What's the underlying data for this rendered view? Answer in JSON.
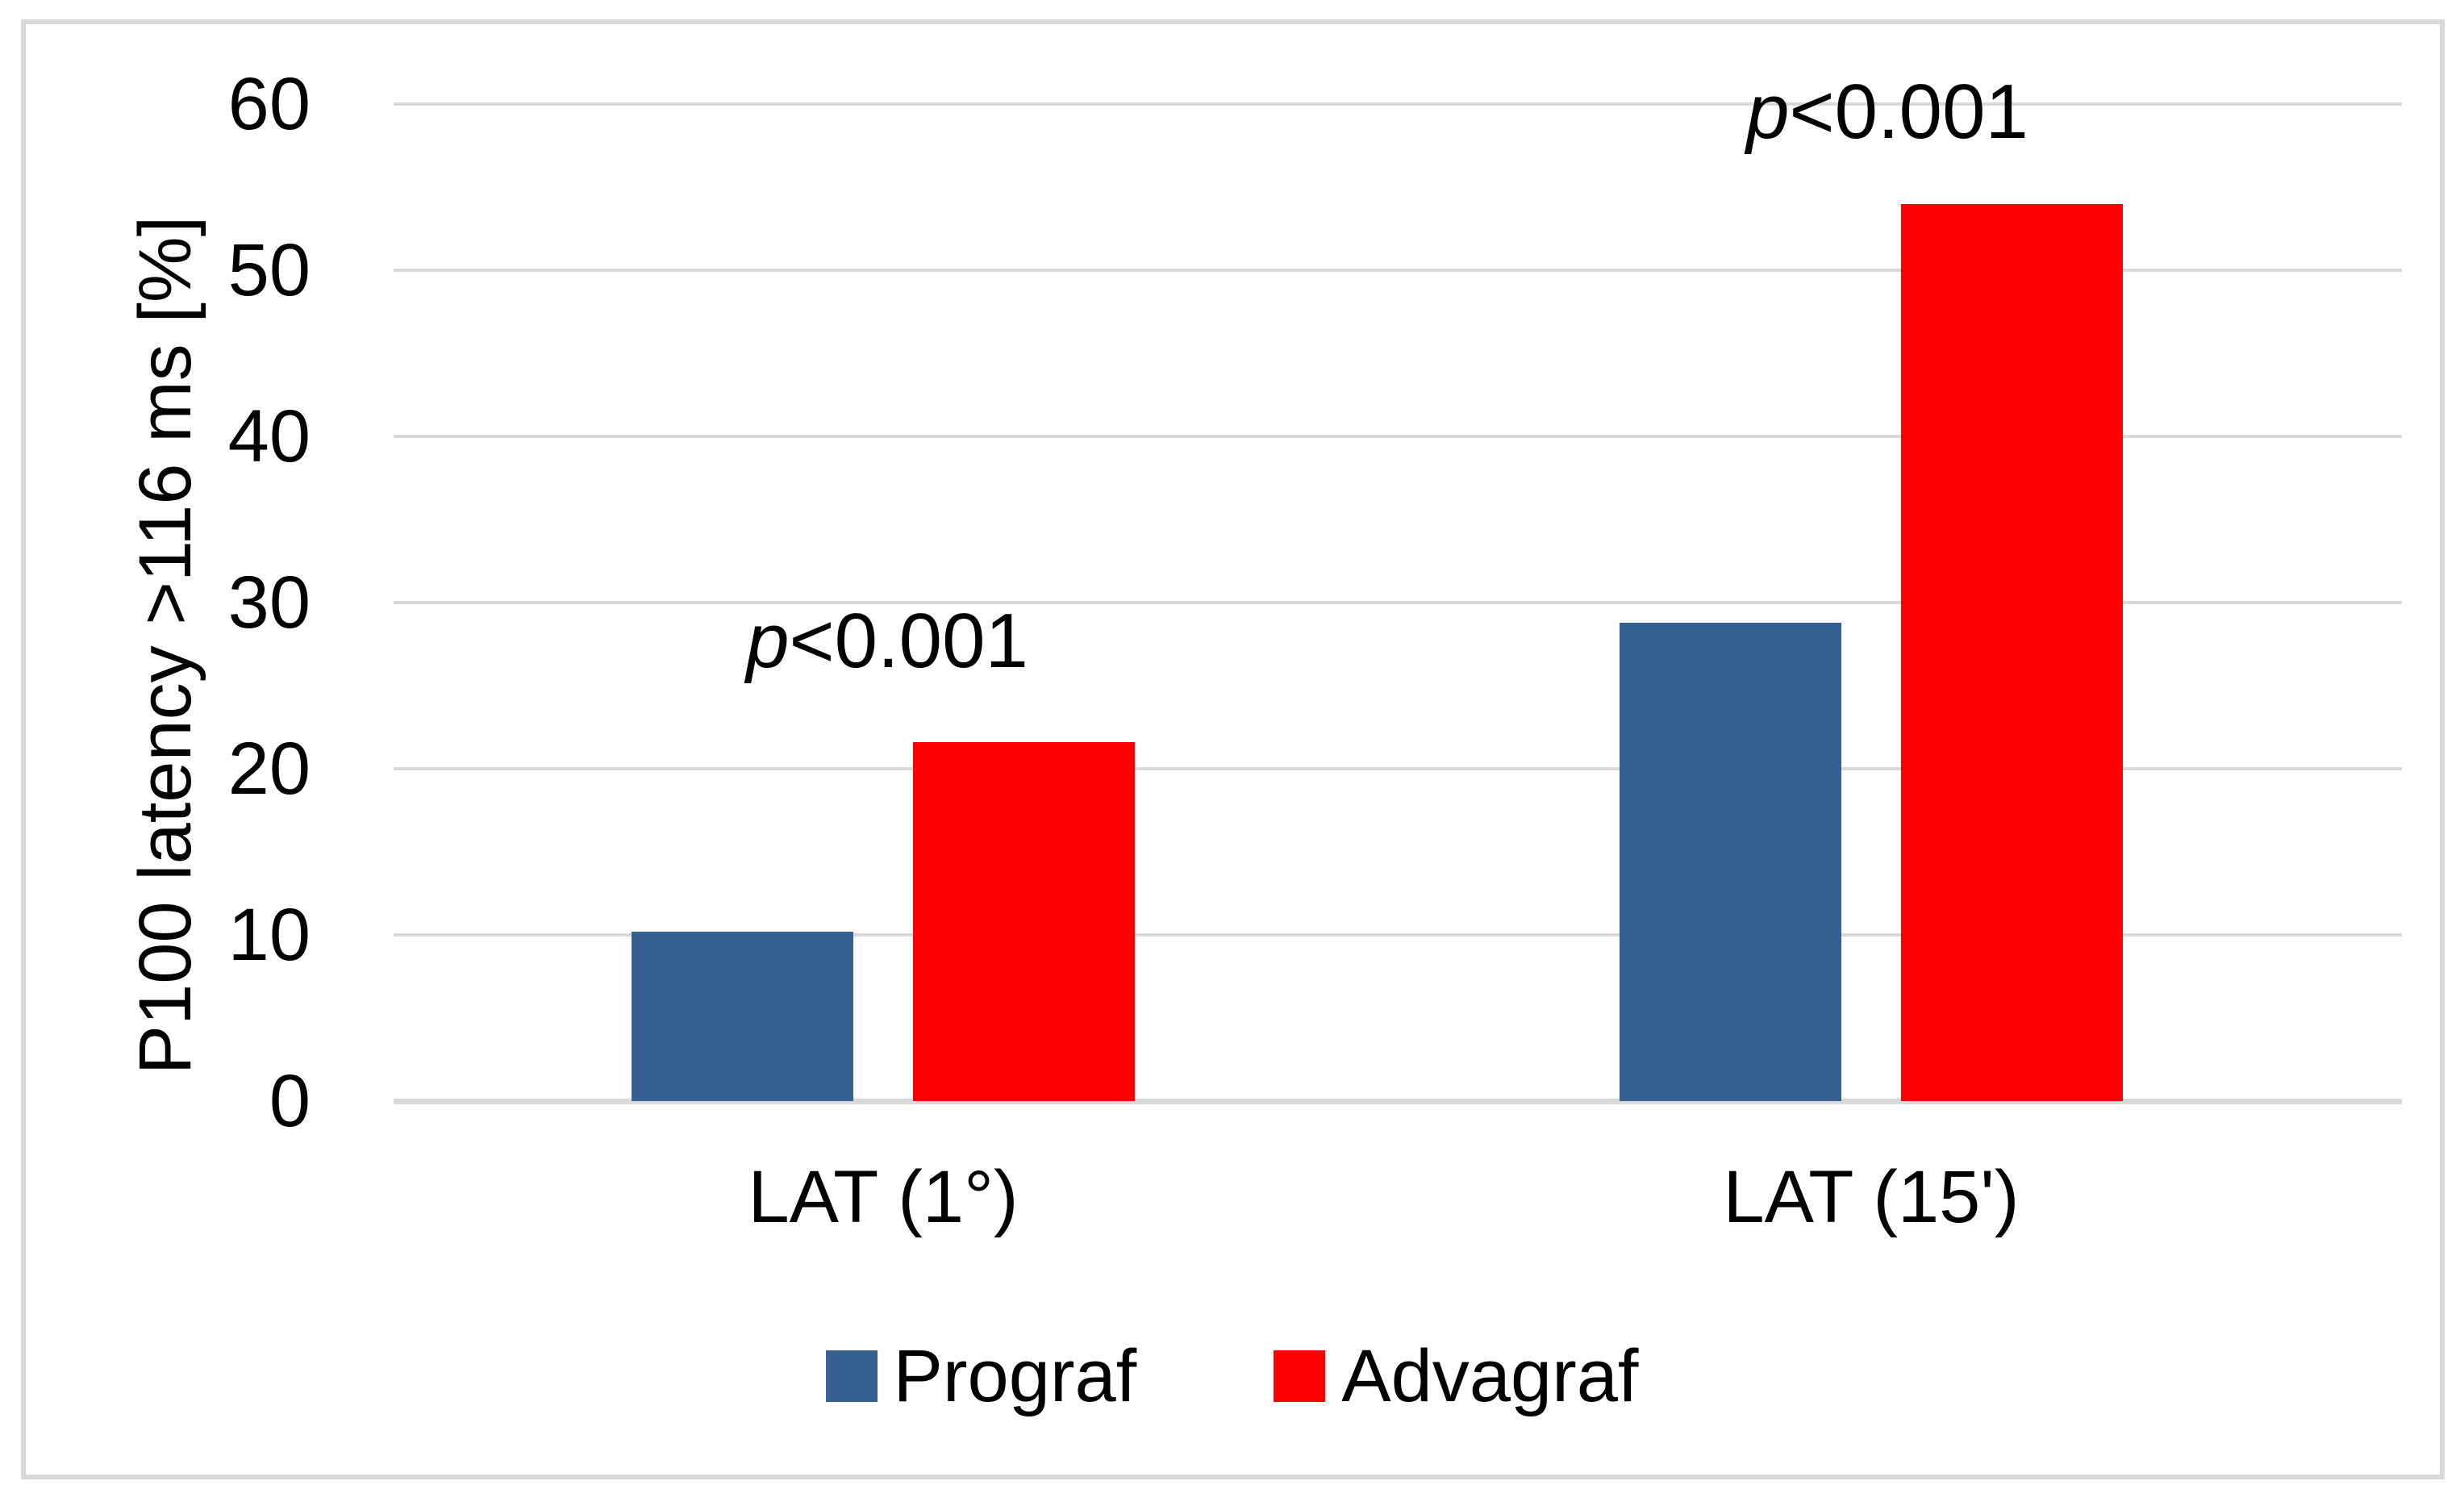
{
  "figure": {
    "background": "#FFFFFF",
    "frame_color": "#D9D9D9",
    "text_color": "#000000"
  },
  "chart_data": {
    "type": "bar",
    "title": "",
    "ylabel": "P100 latency >116 ms [%]",
    "xlabel": "",
    "ylim": [
      0,
      60
    ],
    "ytick_interval": 10,
    "yticks": [
      0,
      10,
      20,
      30,
      40,
      50,
      60
    ],
    "grid": true,
    "gridline_color": "#D9D9D9",
    "categories": [
      "LAT (1°)",
      "LAT (15')"
    ],
    "series": [
      {
        "name": "Prograf",
        "color": "#366092",
        "values": [
          10.2,
          28.8
        ]
      },
      {
        "name": "Advagraf",
        "color": "#FF0000",
        "values": [
          21.6,
          54.0
        ]
      }
    ],
    "annotations": [
      {
        "text": "p<0.001",
        "category": "LAT (1°)"
      },
      {
        "text": "p<0.001",
        "category": "LAT (15')"
      }
    ],
    "legend_position": "bottom"
  }
}
